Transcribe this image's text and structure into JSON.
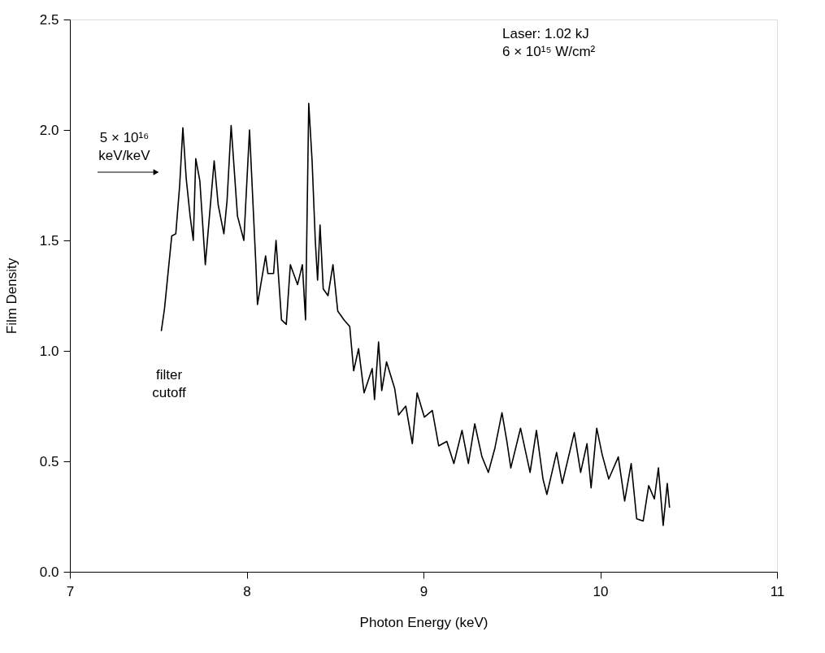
{
  "chart_data": {
    "type": "line",
    "xlabel": "Photon Energy (keV)",
    "ylabel": "Film Density",
    "xlim": [
      7,
      11
    ],
    "xticks": [
      7,
      8,
      9,
      10,
      11
    ],
    "ylim": [
      0,
      2.5
    ],
    "yticks": [
      {
        "value": 0,
        "label": "0.0"
      },
      0.5,
      {
        "value": 1,
        "label": "1.0"
      },
      1.5,
      {
        "value": 2,
        "label": "2.0"
      },
      2.5
    ],
    "grid": false,
    "marker": "none",
    "line_style": "solid",
    "annotations": [
      "Laser:  1.02 kJ\n6 × 10¹⁵ W/cm²",
      "5 × 10¹⁶\nkeV/keV",
      "filter\ncutoff"
    ],
    "series": [
      {
        "color": "#000000",
        "x": [
          7.517,
          7.535,
          7.576,
          7.599,
          7.621,
          7.639,
          7.658,
          7.68,
          7.698,
          7.712,
          7.735,
          7.766,
          7.816,
          7.839,
          7.871,
          7.889,
          7.912,
          7.948,
          7.984,
          8.016,
          8.052,
          8.061,
          8.107,
          8.12,
          8.152,
          8.166,
          8.197,
          8.224,
          8.247,
          8.288,
          8.315,
          8.333,
          8.351,
          8.37,
          8.388,
          8.401,
          8.415,
          8.433,
          8.46,
          8.488,
          8.515,
          8.551,
          8.583,
          8.605,
          8.633,
          8.664,
          8.71,
          8.723,
          8.746,
          8.764,
          8.791,
          8.837,
          8.859,
          8.9,
          8.937,
          8.964,
          9.005,
          9.05,
          9.086,
          9.132,
          9.172,
          9.218,
          9.254,
          9.29,
          9.331,
          9.367,
          9.404,
          9.444,
          9.472,
          9.494,
          9.549,
          9.603,
          9.639,
          9.676,
          9.698,
          9.753,
          9.785,
          9.853,
          9.889,
          9.925,
          9.948,
          9.98,
          10.011,
          10.048,
          10.102,
          10.138,
          10.175,
          10.206,
          10.243,
          10.274,
          10.306,
          10.329,
          10.356,
          10.379,
          10.392
        ],
        "values": [
          1.09,
          1.19,
          1.52,
          1.53,
          1.75,
          2.01,
          1.78,
          1.61,
          1.5,
          1.87,
          1.77,
          1.39,
          1.86,
          1.66,
          1.53,
          1.68,
          2.02,
          1.61,
          1.5,
          2.0,
          1.39,
          1.21,
          1.43,
          1.35,
          1.35,
          1.5,
          1.14,
          1.12,
          1.39,
          1.3,
          1.39,
          1.14,
          2.12,
          1.86,
          1.5,
          1.32,
          1.57,
          1.28,
          1.25,
          1.39,
          1.18,
          1.14,
          1.11,
          0.91,
          1.01,
          0.81,
          0.92,
          0.78,
          1.04,
          0.82,
          0.95,
          0.83,
          0.71,
          0.75,
          0.58,
          0.81,
          0.7,
          0.73,
          0.57,
          0.59,
          0.49,
          0.64,
          0.49,
          0.67,
          0.52,
          0.45,
          0.56,
          0.72,
          0.59,
          0.47,
          0.65,
          0.45,
          0.64,
          0.42,
          0.35,
          0.54,
          0.4,
          0.63,
          0.45,
          0.58,
          0.38,
          0.65,
          0.53,
          0.42,
          0.52,
          0.32,
          0.49,
          0.24,
          0.23,
          0.39,
          0.33,
          0.47,
          0.21,
          0.4,
          0.29
        ]
      }
    ]
  }
}
